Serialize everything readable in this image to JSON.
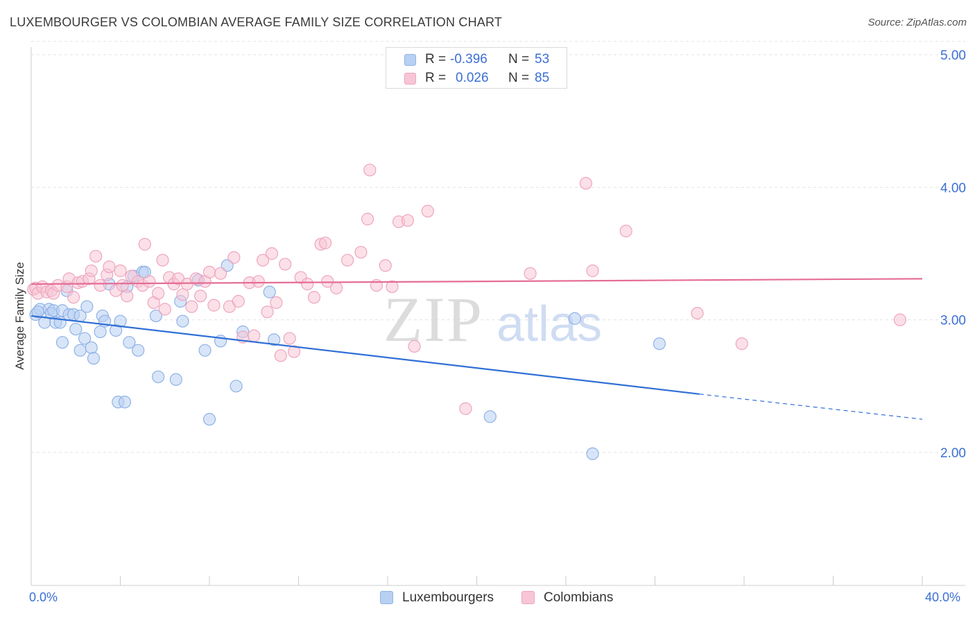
{
  "title": "LUXEMBOURGER VS COLOMBIAN AVERAGE FAMILY SIZE CORRELATION CHART",
  "source": "Source: ZipAtlas.com",
  "watermark": {
    "zip": "ZIP",
    "atlas": "atlas"
  },
  "legend": {
    "series1": {
      "r_label": "R =",
      "r_value": "-0.396",
      "n_label": "N =",
      "n_value": "53"
    },
    "series2": {
      "r_label": "R =",
      "r_value": "0.026",
      "n_label": "N =",
      "n_value": "85"
    }
  },
  "bottom_legend": {
    "series1": "Luxembourgers",
    "series2": "Colombians"
  },
  "x_axis": {
    "min_label": "0.0%",
    "max_label": "40.0%"
  },
  "colors": {
    "blue_fill": "#b8d0f2",
    "blue_stroke": "#8fb2e6",
    "blue_line": "#2f6fd6",
    "pink_fill": "#f7c6d6",
    "pink_stroke": "#eea5bd",
    "pink_line": "#e56d96",
    "tick_text": "#3b6fd4",
    "grid": "#e2e2e2"
  },
  "chart_data": {
    "type": "scatter",
    "title": "LUXEMBOURGER VS COLOMBIAN AVERAGE FAMILY SIZE CORRELATION CHART",
    "xlabel": "",
    "ylabel": "Average Family Size",
    "xlim": [
      0,
      40
    ],
    "ylim": [
      1,
      5.1
    ],
    "y_ticks": [
      2.0,
      3.0,
      4.0,
      5.0
    ],
    "y_tick_labels": [
      "2.00",
      "3.00",
      "4.00",
      "5.00"
    ],
    "x_tick_labels": [
      "0.0%",
      "40.0%"
    ],
    "series": [
      {
        "name": "Luxembourgers",
        "r": -0.396,
        "n": 53,
        "trend": {
          "x_start": 0,
          "y_start": 3.03,
          "x_solid_end": 30,
          "y_solid_end": 2.44,
          "x_end": 40,
          "y_end": 2.25
        },
        "points": [
          [
            0.2,
            3.04
          ],
          [
            0.4,
            3.08
          ],
          [
            0.6,
            2.98
          ],
          [
            0.8,
            3.08
          ],
          [
            0.9,
            3.05
          ],
          [
            1.0,
            3.07
          ],
          [
            1.1,
            2.98
          ],
          [
            1.3,
            2.98
          ],
          [
            1.4,
            3.07
          ],
          [
            1.4,
            2.83
          ],
          [
            1.6,
            3.22
          ],
          [
            1.7,
            3.04
          ],
          [
            1.9,
            3.04
          ],
          [
            2.0,
            2.93
          ],
          [
            2.2,
            3.03
          ],
          [
            2.2,
            2.77
          ],
          [
            2.4,
            2.86
          ],
          [
            2.5,
            3.1
          ],
          [
            2.7,
            2.79
          ],
          [
            2.8,
            2.71
          ],
          [
            3.1,
            2.91
          ],
          [
            3.2,
            3.03
          ],
          [
            3.3,
            2.99
          ],
          [
            3.5,
            3.27
          ],
          [
            3.8,
            2.92
          ],
          [
            3.9,
            2.38
          ],
          [
            4.0,
            2.99
          ],
          [
            4.2,
            2.38
          ],
          [
            4.3,
            3.25
          ],
          [
            4.4,
            2.83
          ],
          [
            4.6,
            3.33
          ],
          [
            4.8,
            2.77
          ],
          [
            5.0,
            3.36
          ],
          [
            5.1,
            3.36
          ],
          [
            5.6,
            3.03
          ],
          [
            5.7,
            2.57
          ],
          [
            6.5,
            2.55
          ],
          [
            6.7,
            3.14
          ],
          [
            6.8,
            2.99
          ],
          [
            7.5,
            3.3
          ],
          [
            7.8,
            2.77
          ],
          [
            8.0,
            2.25
          ],
          [
            8.5,
            2.84
          ],
          [
            8.8,
            3.41
          ],
          [
            9.2,
            2.5
          ],
          [
            9.5,
            2.91
          ],
          [
            10.7,
            3.21
          ],
          [
            10.9,
            2.85
          ],
          [
            20.6,
            2.27
          ],
          [
            24.4,
            3.01
          ],
          [
            25.2,
            1.99
          ],
          [
            28.2,
            2.82
          ],
          [
            0.3,
            3.06
          ]
        ]
      },
      {
        "name": "Colombians",
        "r": 0.026,
        "n": 85,
        "trend": {
          "x_start": 0,
          "y_start": 3.27,
          "x_end": 40,
          "y_end": 3.31
        },
        "points": [
          [
            0.1,
            3.23
          ],
          [
            0.2,
            3.24
          ],
          [
            0.3,
            3.2
          ],
          [
            0.5,
            3.25
          ],
          [
            0.7,
            3.21
          ],
          [
            0.9,
            3.22
          ],
          [
            1.0,
            3.2
          ],
          [
            1.2,
            3.26
          ],
          [
            1.6,
            3.25
          ],
          [
            1.7,
            3.31
          ],
          [
            1.9,
            3.17
          ],
          [
            2.1,
            3.28
          ],
          [
            2.3,
            3.29
          ],
          [
            2.6,
            3.31
          ],
          [
            2.7,
            3.37
          ],
          [
            2.9,
            3.48
          ],
          [
            3.1,
            3.26
          ],
          [
            3.4,
            3.34
          ],
          [
            3.5,
            3.4
          ],
          [
            3.8,
            3.22
          ],
          [
            4.0,
            3.37
          ],
          [
            4.1,
            3.26
          ],
          [
            4.3,
            3.18
          ],
          [
            4.5,
            3.33
          ],
          [
            4.8,
            3.29
          ],
          [
            5.0,
            3.26
          ],
          [
            5.1,
            3.57
          ],
          [
            5.3,
            3.29
          ],
          [
            5.5,
            3.13
          ],
          [
            5.7,
            3.2
          ],
          [
            5.9,
            3.45
          ],
          [
            6.0,
            3.08
          ],
          [
            6.2,
            3.32
          ],
          [
            6.4,
            3.27
          ],
          [
            6.6,
            3.31
          ],
          [
            6.8,
            3.19
          ],
          [
            7.0,
            3.27
          ],
          [
            7.2,
            3.1
          ],
          [
            7.4,
            3.31
          ],
          [
            7.6,
            3.18
          ],
          [
            7.8,
            3.29
          ],
          [
            8.0,
            3.36
          ],
          [
            8.2,
            3.11
          ],
          [
            8.5,
            3.35
          ],
          [
            8.9,
            3.1
          ],
          [
            9.1,
            3.47
          ],
          [
            9.3,
            3.14
          ],
          [
            9.5,
            2.87
          ],
          [
            9.8,
            3.28
          ],
          [
            10.0,
            2.88
          ],
          [
            10.2,
            3.29
          ],
          [
            10.4,
            3.45
          ],
          [
            10.6,
            3.06
          ],
          [
            10.8,
            3.5
          ],
          [
            11.0,
            3.13
          ],
          [
            11.2,
            2.73
          ],
          [
            11.4,
            3.42
          ],
          [
            11.6,
            2.86
          ],
          [
            11.8,
            2.76
          ],
          [
            12.1,
            3.32
          ],
          [
            12.4,
            3.27
          ],
          [
            12.7,
            3.17
          ],
          [
            13.0,
            3.57
          ],
          [
            13.2,
            3.58
          ],
          [
            13.3,
            3.29
          ],
          [
            13.7,
            3.24
          ],
          [
            14.2,
            3.45
          ],
          [
            14.8,
            3.51
          ],
          [
            15.1,
            3.76
          ],
          [
            15.2,
            4.13
          ],
          [
            15.5,
            3.26
          ],
          [
            15.9,
            3.41
          ],
          [
            16.2,
            3.25
          ],
          [
            16.5,
            3.74
          ],
          [
            16.9,
            3.75
          ],
          [
            17.2,
            2.8
          ],
          [
            17.8,
            3.82
          ],
          [
            19.5,
            2.33
          ],
          [
            22.4,
            3.35
          ],
          [
            24.9,
            4.03
          ],
          [
            25.2,
            3.37
          ],
          [
            26.7,
            3.67
          ],
          [
            29.9,
            3.05
          ],
          [
            31.9,
            2.82
          ],
          [
            39.0,
            3.0
          ]
        ]
      }
    ]
  }
}
